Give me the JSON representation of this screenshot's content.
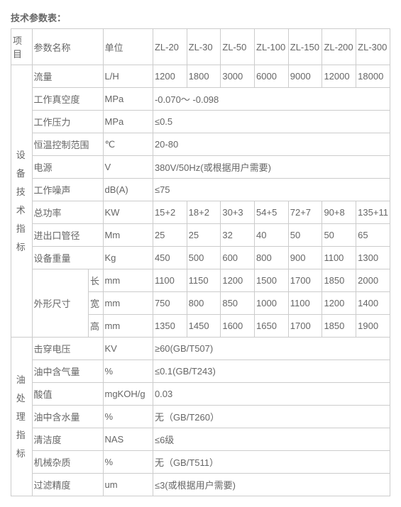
{
  "title": "技术参数表：",
  "headers": {
    "col1": "项目",
    "col2": "参数名称",
    "col3": "单位",
    "models": [
      "ZL-20",
      "ZL-30",
      "ZL-50",
      "ZL-100",
      "ZL-150",
      "ZL-200",
      "ZL-300"
    ]
  },
  "sectionA": "设备技术指标",
  "sectionB": "油处理指标",
  "rows": {
    "flow": {
      "name": "流量",
      "unit": "L/H",
      "vals": [
        "1200",
        "1800",
        "3000",
        "6000",
        "9000",
        "12000",
        "18000"
      ]
    },
    "vacuum": {
      "name": "工作真空度",
      "unit": "MPa",
      "val": "-0.070～ -0.098"
    },
    "press": {
      "name": "工作压力",
      "unit": "MPa",
      "val": "≤0.5"
    },
    "temp": {
      "name": "恒温控制范围",
      "unit": "℃",
      "val": "20-80"
    },
    "power": {
      "name": "电源",
      "unit": "V",
      "val": "380V/50Hz(或根据用户需要)"
    },
    "noise": {
      "name": "工作噪声",
      "unit": "dB(A)",
      "val": "≤75"
    },
    "totalp": {
      "name": "总功率",
      "unit": "KW",
      "vals": [
        "15+2",
        "18+2",
        "30+3",
        "54+5",
        "72+7",
        "90+8",
        "135+11"
      ]
    },
    "pipe": {
      "name": "进出口管径",
      "unit": "Mm",
      "vals": [
        "25",
        "25",
        "32",
        "40",
        "50",
        "50",
        "65"
      ]
    },
    "weight": {
      "name": "设备重量",
      "unit": "Kg",
      "vals": [
        "450",
        "500",
        "600",
        "800",
        "900",
        "1100",
        "1300"
      ]
    },
    "dims": {
      "name": "外形尺寸",
      "len": {
        "label": "长",
        "unit": "mm",
        "vals": [
          "1100",
          "1150",
          "1200",
          "1500",
          "1700",
          "1850",
          "2000"
        ]
      },
      "wid": {
        "label": "宽",
        "unit": "mm",
        "vals": [
          "750",
          "800",
          "850",
          "1000",
          "1100",
          "1200",
          "1400"
        ]
      },
      "hei": {
        "label": "高",
        "unit": "mm",
        "vals": [
          "1350",
          "1450",
          "1600",
          "1650",
          "1700",
          "1850",
          "1900"
        ]
      }
    },
    "breakdown": {
      "name": "击穿电压",
      "unit": "KV",
      "val": "≥60(GB/T507)"
    },
    "gas": {
      "name": "油中含气量",
      "unit": "%",
      "val": "≤0.1(GB/T243)"
    },
    "acid": {
      "name": "酸值",
      "unit": "mgKOH/g",
      "val": "0.03"
    },
    "water": {
      "name": "油中含水量",
      "unit": "%",
      "val": "无（GB/T260）"
    },
    "clean": {
      "name": "清洁度",
      "unit": "NAS",
      "val": "≤6级"
    },
    "impure": {
      "name": "机械杂质",
      "unit": "%",
      "val": "无（GB/T511）"
    },
    "filter": {
      "name": "过滤精度",
      "unit": "um",
      "val": "≤3(或根据用户需要)"
    }
  },
  "style": {
    "border": "#cccccc",
    "text": "#666666",
    "bg": "#ffffff",
    "fontsize": 13
  }
}
